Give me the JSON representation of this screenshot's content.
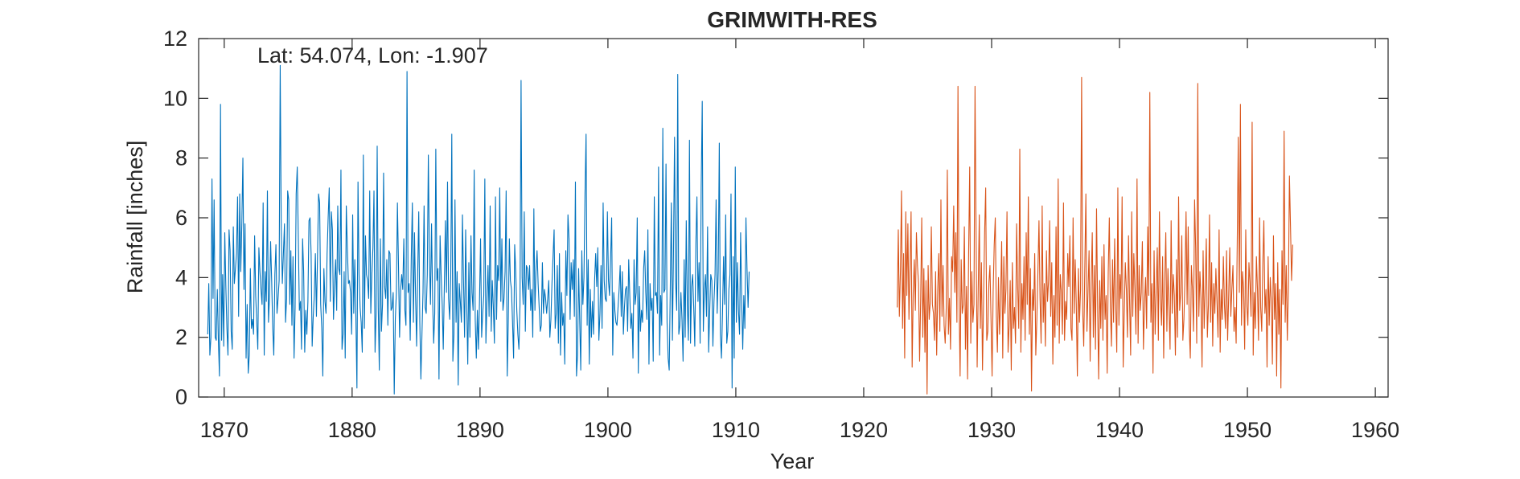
{
  "chart_data": {
    "type": "line",
    "title": "GRIMWITH-RES",
    "annotation": "Lat: 54.074, Lon: -1.907",
    "xlabel": "Year",
    "ylabel": "Rainfall [inches]",
    "xlim": [
      1868,
      1961
    ],
    "ylim": [
      0,
      12
    ],
    "x_ticks": [
      1870,
      1880,
      1890,
      1900,
      1910,
      1920,
      1930,
      1940,
      1950,
      1960
    ],
    "y_ticks": [
      0,
      2,
      4,
      6,
      8,
      10,
      12
    ],
    "grid": false,
    "legend": "none",
    "series": [
      {
        "color": "#0072BD",
        "x_start": 1868.71,
        "x_step": 0.08333,
        "values": [
          2.1,
          3.8,
          1.4,
          2.0,
          7.3,
          3.3,
          6.6,
          2.0,
          1.9,
          3.6,
          1.9,
          0.7,
          9.8,
          1.9,
          4.1,
          1.7,
          5.5,
          3.7,
          2.3,
          1.4,
          5.6,
          4.9,
          2.2,
          1.6,
          5.7,
          3.8,
          4.3,
          4.8,
          6.7,
          2.7,
          6.8,
          4.2,
          5.8,
          8.0,
          3.6,
          5.8,
          1.3,
          3.1,
          0.8,
          1.4,
          4.3,
          2.3,
          2.6,
          2.1,
          5.4,
          3.4,
          2.5,
          1.6,
          5.0,
          4.2,
          3.6,
          3.1,
          6.5,
          1.4,
          4.2,
          3.2,
          6.9,
          2.5,
          3.4,
          5.2,
          3.9,
          2.3,
          1.4,
          4.1,
          5.1,
          2.8,
          3.3,
          3.9,
          11.1,
          5.6,
          3.8,
          4.8,
          5.8,
          2.5,
          3.3,
          6.9,
          6.6,
          3.1,
          4.9,
          2.4,
          4.7,
          1.3,
          3.0,
          6.8,
          7.7,
          5.3,
          2.9,
          3.2,
          1.6,
          5.3,
          4.2,
          1.5,
          2.9,
          2.1,
          3.2,
          5.9,
          6.0,
          4.8,
          1.7,
          2.7,
          3.4,
          4.8,
          2.7,
          4.7,
          6.8,
          6.5,
          3.1,
          2.3,
          0.7,
          4.3,
          3.2,
          2.8,
          4.8,
          6.0,
          7.0,
          3.2,
          6.2,
          5.6,
          2.6,
          3.8,
          4.6,
          2.9,
          6.4,
          4.3,
          4.1,
          7.6,
          1.6,
          2.1,
          4.2,
          1.3,
          6.4,
          5.0,
          3.8,
          3.9,
          3.5,
          2.1,
          6.1,
          2.8,
          4.6,
          2.7,
          0.3,
          7.2,
          4.1,
          3.0,
          2.5,
          1.5,
          8.1,
          2.3,
          5.4,
          4.1,
          3.9,
          3.3,
          6.9,
          2.8,
          4.1,
          5.0,
          6.9,
          1.5,
          2.8,
          8.4,
          3.0,
          0.9,
          5.3,
          2.2,
          3.1,
          7.5,
          3.7,
          3.3,
          4.6,
          2.4,
          4.9,
          4.8,
          2.9,
          3.0,
          3.5,
          0.1,
          2.6,
          3.5,
          6.5,
          4.4,
          2.0,
          3.6,
          4.1,
          3.6,
          5.3,
          2.9,
          2.4,
          10.9,
          3.5,
          3.8,
          1.9,
          4.7,
          6.5,
          2.5,
          5.5,
          3.4,
          1.7,
          4.1,
          6.2,
          2.5,
          0.6,
          2.1,
          3.5,
          6.4,
          3.0,
          2.8,
          4.1,
          8.1,
          4.7,
          3.1,
          5.8,
          3.3,
          1.8,
          2.8,
          8.3,
          3.9,
          4.3,
          0.6,
          5.4,
          4.1,
          3.1,
          1.6,
          3.7,
          5.9,
          3.5,
          7.2,
          3.3,
          2.6,
          4.0,
          8.8,
          1.2,
          2.1,
          6.6,
          2.5,
          4.2,
          0.4,
          3.8,
          3.2,
          2.5,
          6.1,
          3.9,
          2.0,
          5.6,
          3.1,
          1.1,
          4.5,
          2.0,
          5.4,
          3.5,
          2.9,
          7.6,
          2.6,
          1.3,
          2.9,
          1.6,
          3.2,
          5.3,
          2.0,
          2.8,
          3.4,
          7.3,
          1.8,
          3.2,
          4.4,
          2.7,
          6.4,
          2.2,
          3.9,
          3.0,
          1.8,
          6.7,
          2.6,
          4.4,
          3.9,
          7.0,
          3.2,
          5.3,
          2.9,
          3.3,
          4.2,
          6.9,
          0.7,
          2.5,
          5.3,
          3.9,
          3.6,
          2.5,
          1.3,
          5.1,
          4.2,
          2.9,
          2.1,
          1.6,
          3.1,
          10.6,
          4.0,
          3.1,
          6.2,
          2.2,
          4.4,
          4.3,
          3.6,
          4.4,
          2.9,
          3.6,
          2.0,
          6.3,
          2.9,
          4.2,
          4.9,
          3.8,
          3.0,
          2.2,
          2.4,
          4.5,
          2.8,
          3.6,
          3.3,
          2.8,
          3.3,
          3.9,
          2.0,
          2.6,
          3.8,
          4.7,
          5.6,
          2.3,
          2.8,
          4.4,
          1.8,
          4.8,
          1.4,
          3.5,
          2.4,
          2.8,
          1.1,
          4.9,
          3.4,
          6.1,
          5.3,
          2.6,
          4.5,
          3.6,
          4.6,
          2.7,
          7.2,
          0.7,
          1.4,
          4.3,
          2.6,
          0.9,
          4.9,
          3.1,
          4.0,
          6.8,
          8.8,
          2.4,
          4.6,
          1.1,
          3.6,
          2.0,
          3.2,
          2.1,
          3.9,
          4.8,
          3.7,
          5.0,
          1.9,
          2.8,
          4.4,
          2.3,
          6.5,
          3.9,
          3.3,
          3.2,
          6.2,
          3.9,
          3.4,
          4.6,
          6.0,
          1.4,
          3.5,
          2.9,
          2.5,
          2.4,
          3.0,
          3.6,
          4.4,
          2.7,
          4.2,
          2.1,
          3.0,
          3.6,
          3.7,
          2.2,
          4.6,
          3.4,
          2.3,
          2.8,
          1.3,
          4.6,
          3.1,
          3.5,
          6.0,
          0.8,
          3.7,
          2.2,
          2.9,
          2.5,
          4.3,
          4.9,
          3.5,
          2.6,
          5.6,
          1.1,
          3.8,
          2.9,
          3.3,
          1.2,
          6.7,
          3.4,
          3.5,
          2.8,
          7.7,
          1.4,
          3.4,
          2.4,
          9.0,
          3.5,
          3.6,
          7.8,
          2.5,
          1.3,
          0.9,
          3.6,
          6.5,
          1.9,
          4.8,
          8.7,
          3.9,
          2.9,
          10.8,
          2.1,
          2.4,
          3.5,
          2.6,
          1.2,
          4.6,
          2.0,
          5.9,
          3.1,
          1.9,
          8.6,
          1.8,
          3.7,
          4.1,
          3.0,
          1.7,
          5.1,
          6.7,
          3.2,
          4.5,
          1.8,
          7.0,
          9.9,
          2.2,
          3.6,
          4.1,
          2.7,
          5.7,
          1.5,
          2.9,
          4.1,
          3.9,
          1.7,
          3.2,
          4.1,
          6.6,
          2.8,
          4.2,
          8.5,
          2.1,
          1.3,
          2.8,
          4.7,
          3.1,
          6.1,
          1.8,
          2.2,
          3.6,
          4.1,
          6.8,
          0.3,
          4.7,
          1.3,
          7.7,
          2.5,
          4.5,
          2.9,
          2.1,
          5.5,
          3.2,
          1.6,
          3.4,
          2.3,
          6.0,
          4.3,
          3.0,
          4.2
        ]
      },
      {
        "color": "#D95319",
        "x_start": 1922.62,
        "x_step": 0.08333,
        "values": [
          3.0,
          5.6,
          2.7,
          4.2,
          6.9,
          2.3,
          4.8,
          1.3,
          6.2,
          3.4,
          5.8,
          2.6,
          4.3,
          6.2,
          1.0,
          3.5,
          4.6,
          2.9,
          5.5,
          4.4,
          3.8,
          1.2,
          3.3,
          6.0,
          2.0,
          4.3,
          1.5,
          3.9,
          0.1,
          4.4,
          2.6,
          3.2,
          5.7,
          3.1,
          2.8,
          1.9,
          4.2,
          1.4,
          3.6,
          4.8,
          2.2,
          6.6,
          2.7,
          4.4,
          2.4,
          1.8,
          3.0,
          7.6,
          2.1,
          3.3,
          1.6,
          4.7,
          4.2,
          6.4,
          3.5,
          5.5,
          2.5,
          10.4,
          3.4,
          0.7,
          4.6,
          2.8,
          3.1,
          5.7,
          1.6,
          3.7,
          0.6,
          4.8,
          7.7,
          1.8,
          4.2,
          2.5,
          3.1,
          10.4,
          5.4,
          1.0,
          3.6,
          6.1,
          2.3,
          4.5,
          0.9,
          3.2,
          5.5,
          7.0,
          1.9,
          2.2,
          3.8,
          4.4,
          2.6,
          0.7,
          3.5,
          5.1,
          6.0,
          2.7,
          1.5,
          4.0,
          2.1,
          3.3,
          5.2,
          1.3,
          4.7,
          2.8,
          3.6,
          6.2,
          1.5,
          2.4,
          3.9,
          0.9,
          4.5,
          2.3,
          3.0,
          1.8,
          5.8,
          3.7,
          2.3,
          8.3,
          1.5,
          3.8,
          2.6,
          4.7,
          1.9,
          5.5,
          3.1,
          6.7,
          2.1,
          4.3,
          0.2,
          3.6,
          2.9,
          4.8,
          1.4,
          2.6,
          4.2,
          5.9,
          3.3,
          1.8,
          6.4,
          2.5,
          3.8,
          1.7,
          4.9,
          3.2,
          3.9,
          5.9,
          2.7,
          4.5,
          1.1,
          3.4,
          2.0,
          5.7,
          2.4,
          7.3,
          1.8,
          4.1,
          3.5,
          2.1,
          6.5,
          1.9,
          3.2,
          2.6,
          4.8,
          3.7,
          5.4,
          2.3,
          1.9,
          6.0,
          2.8,
          4.6,
          3.1,
          0.7,
          4.3,
          2.5,
          3.6,
          10.7,
          2.9,
          1.7,
          4.3,
          6.8,
          2.2,
          3.5,
          4.9,
          1.2,
          3.8,
          5.5,
          2.0,
          4.4,
          1.6,
          6.3,
          3.1,
          0.6,
          3.9,
          2.3,
          4.7,
          1.9,
          5.1,
          2.6,
          3.4,
          0.8,
          4.2,
          6.0,
          3.0,
          1.7,
          4.6,
          2.5,
          5.3,
          3.1,
          1.5,
          7.0,
          2.4,
          4.1,
          3.3,
          6.7,
          1.0,
          2.8,
          4.5,
          3.6,
          2.0,
          5.4,
          3.2,
          1.4,
          6.2,
          2.7,
          4.8,
          3.6,
          2.1,
          7.3,
          1.8,
          4.4,
          2.9,
          3.5,
          5.2,
          1.6,
          3.1,
          4.0,
          2.3,
          5.7,
          3.4,
          10.2,
          2.5,
          3.8,
          0.8,
          4.9,
          2.1,
          3.6,
          5.0,
          1.9,
          6.2,
          3.3,
          2.4,
          4.7,
          1.3,
          3.9,
          5.5,
          2.2,
          4.3,
          3.0,
          1.6,
          5.9,
          2.8,
          4.1,
          3.4,
          1.4,
          4.6,
          2.0,
          6.7,
          2.9,
          3.5,
          5.4,
          1.9,
          2.6,
          4.0,
          6.2,
          3.1,
          5.7,
          2.3,
          1.3,
          4.4,
          3.6,
          2.2,
          6.6,
          5.0,
          1.8,
          10.5,
          2.7,
          4.2,
          3.3,
          1.0,
          4.9,
          2.3,
          3.7,
          5.3,
          2.0,
          3.1,
          6.1,
          2.5,
          4.5,
          1.7,
          3.8,
          2.8,
          4.3,
          3.2,
          2.0,
          5.6,
          1.5,
          3.6,
          2.6,
          4.7,
          3.1,
          2.3,
          4.9,
          1.9,
          3.4,
          5.0,
          2.7,
          3.6,
          4.4,
          2.2,
          3.0,
          1.8,
          5.1,
          8.7,
          3.5,
          9.8,
          2.4,
          4.2,
          3.6,
          1.6,
          5.6,
          3.1,
          2.4,
          4.5,
          3.8,
          2.7,
          9.2,
          1.4,
          3.5,
          2.3,
          4.7,
          3.6,
          1.9,
          6.0,
          3.0,
          2.2,
          4.4,
          5.9,
          2.8,
          3.6,
          1.0,
          4.7,
          2.4,
          4.0,
          3.2,
          1.1,
          5.4,
          2.6,
          3.8,
          0.7,
          4.5,
          2.1,
          3.6,
          0.3,
          4.9,
          3.1,
          8.9,
          2.5,
          4.4,
          1.9,
          3.6,
          7.4,
          5.7,
          3.9,
          5.1
        ]
      }
    ]
  }
}
